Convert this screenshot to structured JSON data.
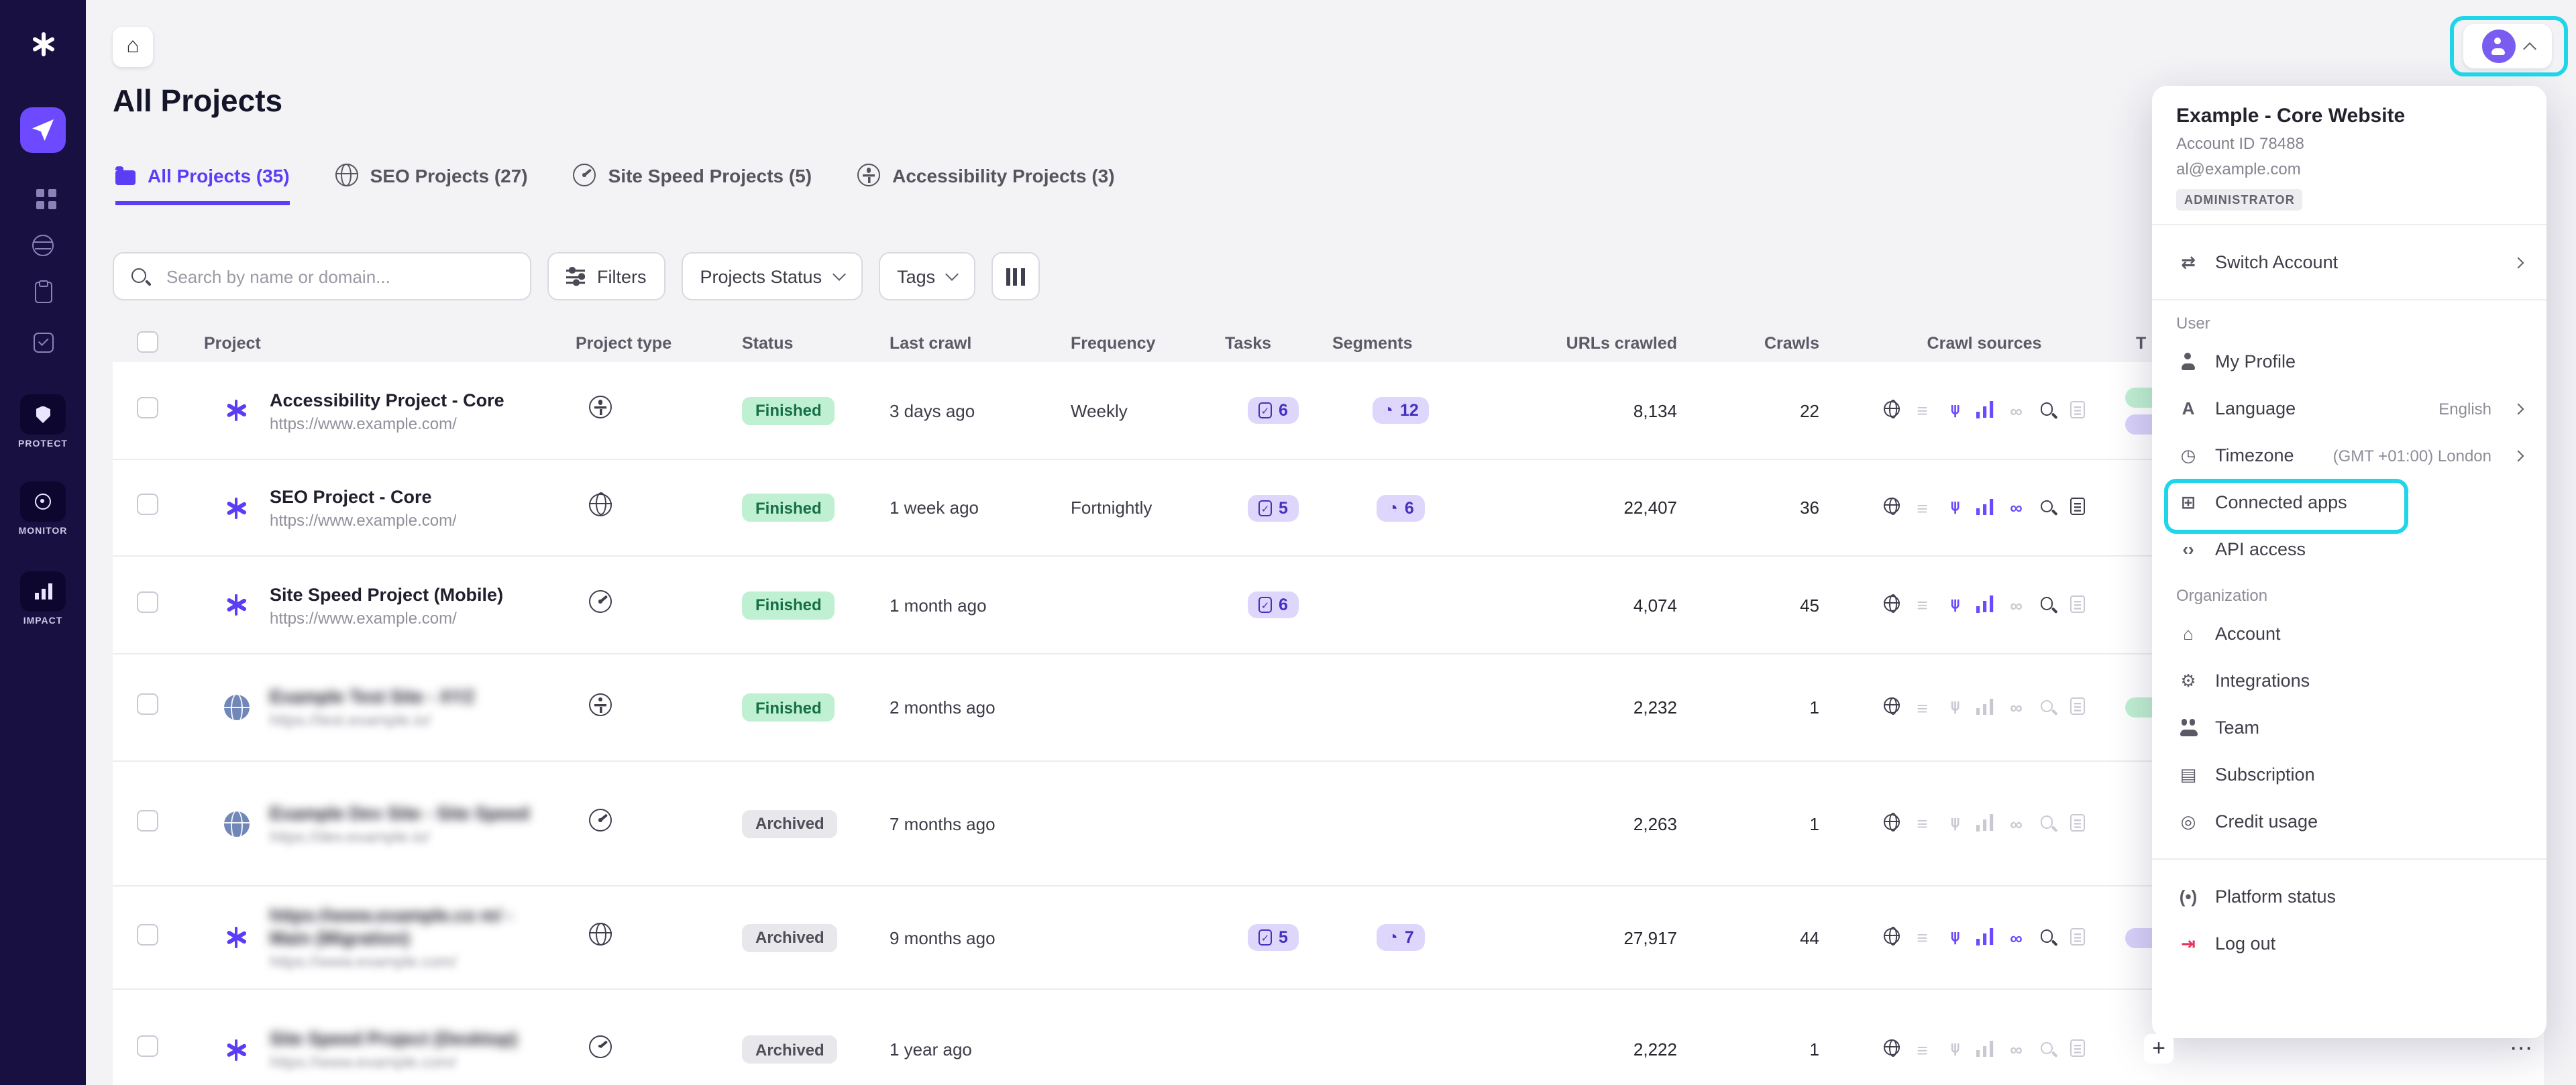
{
  "palette": {
    "accent": "#6d4aff",
    "sidebar": "#181040",
    "highlight": "#1fd5e9",
    "finished_bg": "#bff0d2",
    "finished_text": "#156f47",
    "archived_bg": "#e7e7ec",
    "archived_text": "#4f4f5a",
    "badge_bg": "#ded7fb",
    "badge_text": "#4430c0",
    "src_dark": "#3f3f4e",
    "src_purple": "#6d4aff",
    "src_off": "#c9c9d4",
    "danger": "#e8345a"
  },
  "icon_glyphs": {
    "home": "⌂",
    "list": "≡",
    "sitemap": "⋔",
    "link": "∞",
    "pie": "◔",
    "check": "✓",
    "switch": "⇄",
    "person": "css",
    "language": "A",
    "clock": "◷",
    "apps": "⊞",
    "api": "‹›",
    "building": "⌂",
    "integrations": "⚙",
    "team": "css",
    "card": "▤",
    "credits": "◎",
    "status": "(•)",
    "logout": "⇥",
    "plus": "+",
    "more": "⋯",
    "chevron_right": "›"
  },
  "sidebar": {
    "tiles": [
      {
        "name": "protect",
        "label": "PROTECT"
      },
      {
        "name": "monitor",
        "label": "MONITOR"
      },
      {
        "name": "impact",
        "label": "IMPACT"
      }
    ]
  },
  "header": {
    "title": "All Projects"
  },
  "tabs": [
    {
      "label": "All Projects (35)",
      "icon": "folder",
      "active": true
    },
    {
      "label": "SEO Projects (27)",
      "icon": "globe",
      "active": false
    },
    {
      "label": "Site Speed Projects (5)",
      "icon": "gauge",
      "active": false
    },
    {
      "label": "Accessibility Projects (3)",
      "icon": "access",
      "active": false
    }
  ],
  "toolbar": {
    "search_placeholder": "Search by name or domain...",
    "filters_label": "Filters",
    "status_label": "Projects Status",
    "tags_label": "Tags"
  },
  "table": {
    "columns": [
      "Project",
      "Project type",
      "Status",
      "Last crawl",
      "Frequency",
      "Tasks",
      "Segments",
      "URLs crawled",
      "Crawls",
      "Crawl sources",
      "T"
    ],
    "source_order": [
      "web",
      "list",
      "sitemap",
      "analytics",
      "link",
      "search",
      "log"
    ],
    "rows": [
      {
        "h": 73,
        "lead": "brand",
        "name": "Accessibility Project - Core",
        "url": "https://www.example.com/",
        "redacted": false,
        "type": "access",
        "status": "Finished",
        "skind": "ok",
        "last": "3 days ago",
        "freq": "Weekly",
        "tasks": "6",
        "segments": "12",
        "urls": "8,134",
        "crawls": "22",
        "sources": [
          "dark",
          "off",
          "purple",
          "purple",
          "off",
          "dark",
          "off"
        ],
        "peeks": [
          "green",
          "purple"
        ]
      },
      {
        "h": 72,
        "lead": "brand",
        "name": "SEO Project - Core",
        "url": "https://www.example.com/",
        "redacted": false,
        "type": "globe",
        "status": "Finished",
        "skind": "ok",
        "last": "1 week ago",
        "freq": "Fortnightly",
        "tasks": "5",
        "segments": "6",
        "urls": "22,407",
        "crawls": "36",
        "sources": [
          "dark",
          "off",
          "purple",
          "purple",
          "purple",
          "dark",
          "dark"
        ],
        "peeks": []
      },
      {
        "h": 73,
        "lead": "brand",
        "name": "Site Speed Project (Mobile)",
        "url": "https://www.example.com/",
        "redacted": false,
        "type": "gauge",
        "status": "Finished",
        "skind": "ok",
        "last": "1 month ago",
        "freq": "",
        "tasks": "6",
        "segments": "",
        "urls": "4,074",
        "crawls": "45",
        "sources": [
          "dark",
          "off",
          "purple",
          "purple",
          "off",
          "dark",
          "off"
        ],
        "peeks": []
      },
      {
        "h": 80,
        "lead": "world",
        "name": "Example Test Site - XYZ",
        "url": "https://test.example.io/",
        "redacted": true,
        "type": "access",
        "status": "Finished",
        "skind": "ok",
        "last": "2 months ago",
        "freq": "",
        "tasks": "",
        "segments": "",
        "urls": "2,232",
        "crawls": "1",
        "sources": [
          "dark",
          "off",
          "off",
          "off",
          "off",
          "off",
          "off"
        ],
        "peeks": [
          "green"
        ]
      },
      {
        "h": 93,
        "lead": "world",
        "name": "Example Dev Site - Site Speed",
        "url": "https://dev.example.io/",
        "redacted": true,
        "type": "gauge",
        "status": "Archived",
        "skind": "muted",
        "last": "7 months ago",
        "freq": "",
        "tasks": "",
        "segments": "",
        "urls": "2,263",
        "crawls": "1",
        "sources": [
          "dark",
          "off",
          "off",
          "off",
          "off",
          "off",
          "off"
        ],
        "peeks": []
      },
      {
        "h": 77,
        "lead": "brand",
        "name": "https://www.example.co m/ - Main (Migration)",
        "url": "https://www.example.com/",
        "redacted": true,
        "type": "globe",
        "status": "Archived",
        "skind": "muted",
        "last": "9 months ago",
        "freq": "",
        "tasks": "5",
        "segments": "7",
        "urls": "27,917",
        "crawls": "44",
        "sources": [
          "dark",
          "off",
          "purple",
          "purple",
          "purple",
          "dark",
          "off"
        ],
        "peeks": [
          "purple"
        ]
      },
      {
        "h": 90,
        "lead": "brand",
        "name": "Site Speed Project (Desktop)",
        "url": "https://www.example.com/",
        "redacted": true,
        "type": "gauge",
        "status": "Archived",
        "skind": "muted",
        "last": "1 year ago",
        "freq": "",
        "tasks": "",
        "segments": "",
        "urls": "2,222",
        "crawls": "1",
        "sources": [
          "dark",
          "off",
          "off",
          "off",
          "off",
          "off",
          "off"
        ],
        "peeks": []
      }
    ]
  },
  "fab": {
    "add": "+",
    "more": "⋯"
  },
  "user_menu": {
    "title": "Example - Core Website",
    "account_id": "Account ID 78488",
    "email": "al@example.com",
    "role_badge": "ADMINISTRATOR",
    "switch_label": "Switch Account",
    "sections": [
      {
        "label": "User",
        "items": [
          {
            "label": "My Profile",
            "icon": "person"
          },
          {
            "label": "Language",
            "icon": "language",
            "right": "English",
            "chevron": true
          },
          {
            "label": "Timezone",
            "icon": "clock",
            "right": "(GMT +01:00) London",
            "chevron": true
          },
          {
            "label": "Connected apps",
            "icon": "apps",
            "highlighted": true
          },
          {
            "label": "API access",
            "icon": "api"
          }
        ]
      },
      {
        "label": "Organization",
        "items": [
          {
            "label": "Account",
            "icon": "building"
          },
          {
            "label": "Integrations",
            "icon": "integrations"
          },
          {
            "label": "Team",
            "icon": "team"
          },
          {
            "label": "Subscription",
            "icon": "card"
          },
          {
            "label": "Credit usage",
            "icon": "credits"
          }
        ]
      }
    ],
    "footer": [
      {
        "label": "Platform status",
        "icon": "status"
      },
      {
        "label": "Log out",
        "icon": "logout",
        "danger": true
      }
    ]
  }
}
